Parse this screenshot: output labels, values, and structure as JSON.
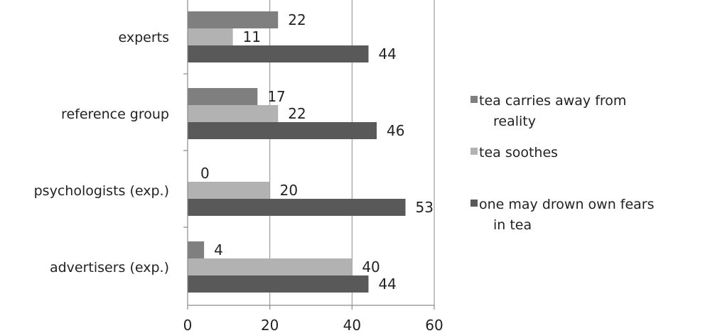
{
  "chart_data": {
    "type": "bar",
    "orientation": "horizontal",
    "categories": [
      "experts",
      "reference group",
      "psychologists (exp.)",
      "advertisers (exp.)"
    ],
    "series": [
      {
        "name": "tea carries away from reality",
        "values": [
          22,
          17,
          0,
          4
        ],
        "color": "#7f7f7f"
      },
      {
        "name": "tea soothes",
        "values": [
          11,
          22,
          20,
          40
        ],
        "color": "#b2b2b2"
      },
      {
        "name": "one may drown own fears in tea",
        "values": [
          44,
          46,
          53,
          44
        ],
        "color": "#595959"
      }
    ],
    "x_ticks": [
      0,
      20,
      40,
      60
    ],
    "xlim": [
      0,
      60
    ],
    "grid": true,
    "legend_position": "right",
    "title": "",
    "xlabel": "",
    "ylabel": ""
  }
}
